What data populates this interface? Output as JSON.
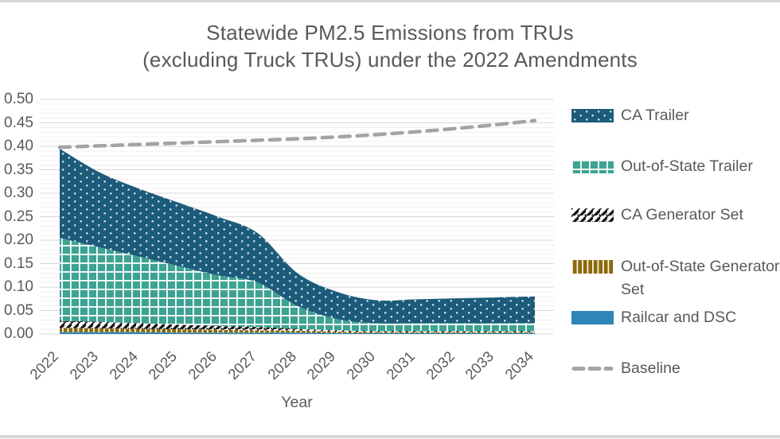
{
  "page": {
    "background": "#ffffff",
    "top_edge_color": "#d7d7d7",
    "bottom_edge_color": "#d7d7d7",
    "text_color": "#595959"
  },
  "title": {
    "line1": "Statewide PM2.5 Emissions from TRUs",
    "line2": "(excluding Truck TRUs) under the 2022 Amendments"
  },
  "chart_data": {
    "type": "area",
    "stacked": true,
    "smoothed": true,
    "title": "Statewide PM2.5 Emissions from TRUs (excluding Truck TRUs) under the 2022 Amendments",
    "xlabel": "Year",
    "ylabel": "",
    "x": [
      "2022",
      "2023",
      "2024",
      "2025",
      "2026",
      "2027",
      "2028",
      "2029",
      "2030",
      "2031",
      "2032",
      "2033",
      "2034"
    ],
    "ylim": [
      0,
      0.5
    ],
    "ytick_step": 0.05,
    "ytick_labels": [
      "0.00",
      "0.05",
      "0.10",
      "0.15",
      "0.20",
      "0.25",
      "0.30",
      "0.35",
      "0.40",
      "0.45",
      "0.50"
    ],
    "grid": {
      "minor_step": 0.01,
      "major_step": 0.05,
      "minor_color": "#f1f1f1",
      "major_color": "#d7d7d7",
      "vertical": false
    },
    "legend_position": "right",
    "series": [
      {
        "name": "Railcar and DSC",
        "swatch": "solid",
        "color": "#2e86b8",
        "values": [
          0.004,
          0.004,
          0.004,
          0.003,
          0.003,
          0.003,
          0.003,
          0.002,
          0.002,
          0.002,
          0.002,
          0.002,
          0.002
        ]
      },
      {
        "name": "Out-of-State Generator Set",
        "swatch": "vertical",
        "color": "#8c6909",
        "stripe_color": "#f6f2e8",
        "values": [
          0.009,
          0.008,
          0.007,
          0.007,
          0.006,
          0.005,
          0.004,
          0.003,
          0.002,
          0.002,
          0.002,
          0.002,
          0.002
        ]
      },
      {
        "name": "CA Generator Set",
        "swatch": "diagonal",
        "color": "#141414",
        "stripe_background": "#ffffff",
        "values": [
          0.015,
          0.014,
          0.012,
          0.01,
          0.008,
          0.007,
          0.004,
          0.003,
          0.002,
          0.002,
          0.002,
          0.002,
          0.002
        ]
      },
      {
        "name": "Out-of-State Trailer",
        "swatch": "grid",
        "color": "#3da392",
        "grid_line_color": "#ffffff",
        "values": [
          0.177,
          0.159,
          0.142,
          0.125,
          0.108,
          0.095,
          0.049,
          0.024,
          0.017,
          0.017,
          0.017,
          0.017,
          0.018
        ]
      },
      {
        "name": "CA Trailer",
        "swatch": "dots",
        "color": "#1d5b7b",
        "dot_color": "#d3e7ee",
        "values": [
          0.19,
          0.16,
          0.145,
          0.135,
          0.125,
          0.105,
          0.07,
          0.058,
          0.049,
          0.051,
          0.053,
          0.055,
          0.056
        ]
      }
    ],
    "baseline": {
      "name": "Baseline",
      "style": "dashed",
      "color": "#a3a3a3",
      "values": [
        0.398,
        0.401,
        0.404,
        0.407,
        0.41,
        0.413,
        0.416,
        0.42,
        0.425,
        0.431,
        0.438,
        0.446,
        0.455
      ]
    }
  },
  "legend": {
    "items": [
      {
        "label": "CA Trailer"
      },
      {
        "label": "Out-of-State Trailer"
      },
      {
        "label": "CA Generator Set"
      },
      {
        "label": "Out-of-State Generator Set"
      },
      {
        "label": "Railcar and DSC"
      },
      {
        "label": "Baseline"
      }
    ]
  }
}
